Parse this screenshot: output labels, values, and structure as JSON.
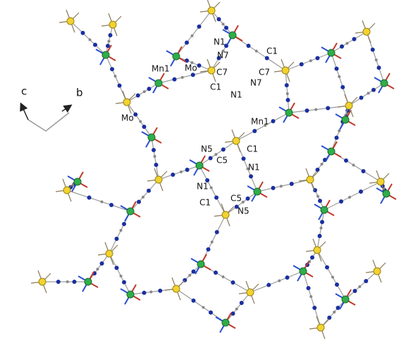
{
  "axes": {
    "c": "c",
    "b": "b"
  },
  "atom_labels": [
    "N1",
    "N7",
    "C1",
    "Mo",
    "C7",
    "C7",
    "Mn1",
    "N7",
    "C1",
    "N1",
    "Mn1",
    "Mo",
    "N5",
    "C1",
    "C5",
    "N1",
    "N1",
    "C1",
    "C5",
    "N5"
  ]
}
